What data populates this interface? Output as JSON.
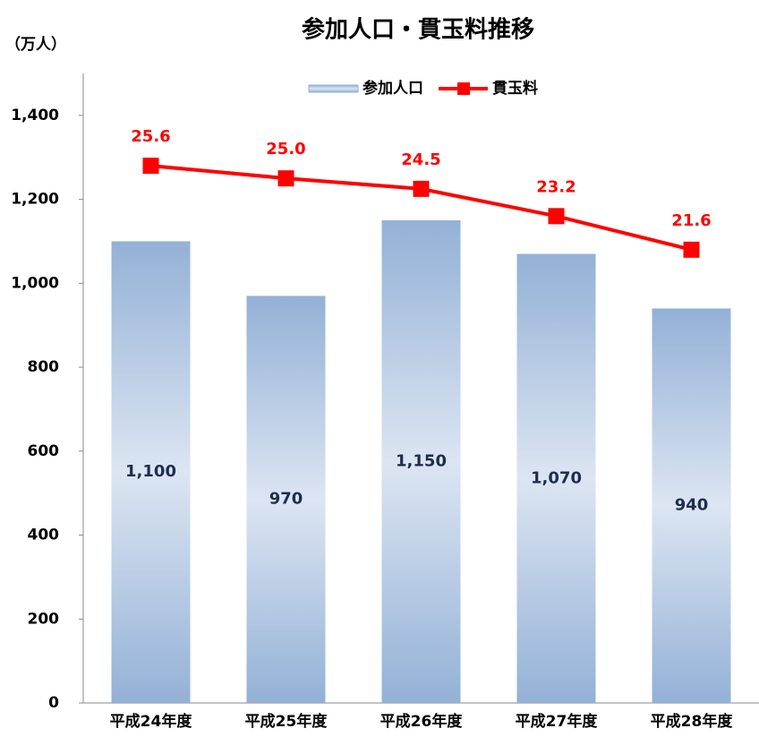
{
  "chart_data": {
    "type": "bar_line",
    "title": "参加人口・貫玉料推移",
    "ylabel": "（万人）",
    "categories": [
      "平成24年度",
      "平成25年度",
      "平成26年度",
      "平成27年度",
      "平成28年度"
    ],
    "series": [
      {
        "name": "参加人口",
        "type": "bar",
        "color": "#95b3d7",
        "values": [
          1100,
          970,
          1150,
          1070,
          940
        ],
        "value_labels": [
          "1,100",
          "970",
          "1,150",
          "1,070",
          "940"
        ]
      },
      {
        "name": "貫玉料",
        "type": "line",
        "axis": "y2",
        "color": "#ff0000",
        "values": [
          25.6,
          25.0,
          24.5,
          23.2,
          21.6
        ],
        "value_labels": [
          "25.6",
          "25.0",
          "24.5",
          "23.2",
          "21.6"
        ]
      }
    ],
    "ylim": [
      0,
      1500
    ],
    "yticks": [
      0,
      200,
      400,
      600,
      800,
      {
        "value": 1000,
        "label": "1,000"
      },
      {
        "value": 1200,
        "label": "1,200"
      },
      {
        "value": 1400,
        "label": "1,400"
      }
    ],
    "y2lim": [
      0,
      30
    ],
    "legend": "top"
  }
}
